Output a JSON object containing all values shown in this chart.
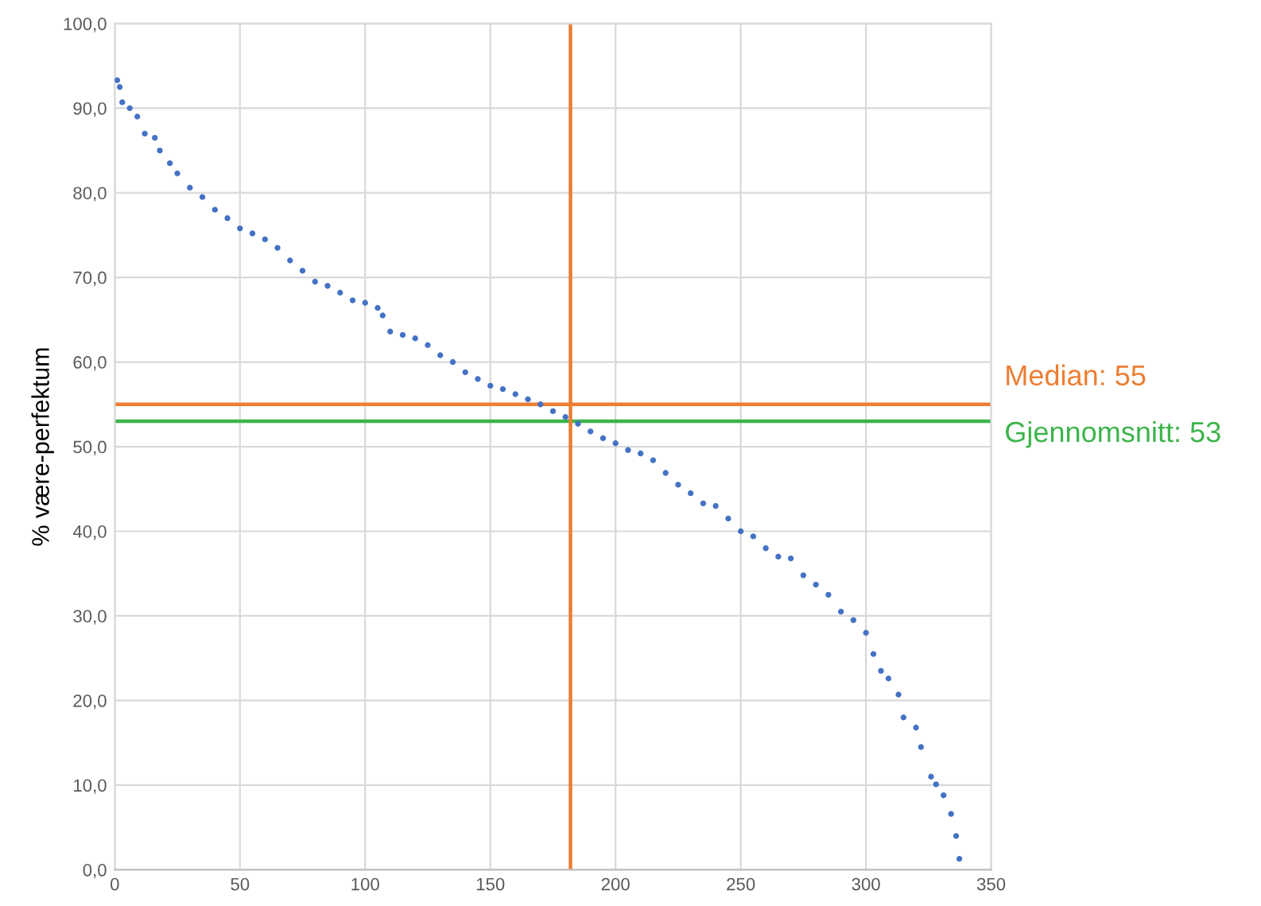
{
  "chart_data": {
    "type": "scatter",
    "ylabel": "% være-perfektum",
    "marker": "circle",
    "grid": true,
    "legend": false,
    "series": [
      {
        "color": "#4472c4",
        "x": [
          1,
          2,
          3,
          6,
          9,
          12,
          16,
          18,
          22,
          25,
          30,
          35,
          40,
          45,
          50,
          55,
          60,
          65,
          70,
          75,
          80,
          85,
          90,
          95,
          100,
          105,
          107,
          110,
          115,
          120,
          125,
          130,
          135,
          140,
          145,
          150,
          155,
          160,
          165,
          170,
          175,
          180,
          185,
          190,
          195,
          200,
          205,
          210,
          215,
          220,
          225,
          230,
          235,
          240,
          245,
          250,
          255,
          260,
          265,
          270,
          275,
          280,
          285,
          290,
          295,
          300,
          303,
          306,
          309,
          313,
          315,
          320,
          322,
          326,
          328,
          331,
          334,
          336,
          337.3
        ],
        "values": [
          93.3,
          92.5,
          90.7,
          90,
          89,
          87,
          86.5,
          85,
          83.5,
          82.3,
          80.6,
          79.5,
          78,
          77,
          75.8,
          75.2,
          74.5,
          73.5,
          72,
          70.8,
          69.5,
          69,
          68.2,
          67.3,
          67,
          66.4,
          65.5,
          63.6,
          63.2,
          62.8,
          62,
          60.8,
          60,
          58.8,
          58,
          57.2,
          56.8,
          56.2,
          55.6,
          55,
          54.2,
          53.5,
          52.7,
          51.8,
          51,
          50.4,
          49.6,
          49.2,
          48.4,
          46.9,
          45.5,
          44.5,
          43.3,
          43,
          41.5,
          40,
          39.4,
          38,
          37,
          36.8,
          34.8,
          33.7,
          32.5,
          30.5,
          29.5,
          28,
          25.5,
          23.5,
          22.6,
          20.7,
          18,
          16.8,
          14.5,
          11,
          10.1,
          8.8,
          6.6,
          4,
          1.3
        ]
      }
    ],
    "xlim": [
      0,
      350
    ],
    "xticks": [
      0,
      50,
      100,
      150,
      200,
      250,
      300,
      350
    ],
    "ylim": [
      0,
      100
    ],
    "yticks": [
      {
        "value": 0,
        "label": "0,0"
      },
      {
        "value": 10,
        "label": "10,0"
      },
      {
        "value": 20,
        "label": "20,0"
      },
      {
        "value": 30,
        "label": "30,0"
      },
      {
        "value": 40,
        "label": "40,0"
      },
      {
        "value": 50,
        "label": "50,0"
      },
      {
        "value": 60,
        "label": "60,0"
      },
      {
        "value": 70,
        "label": "70,0"
      },
      {
        "value": 80,
        "label": "80,0"
      },
      {
        "value": 90,
        "label": "90,0"
      },
      {
        "value": 100,
        "label": "100,0"
      }
    ],
    "ref_lines": [
      {
        "axis": "y",
        "value": 55,
        "label": "Median: 55",
        "color": "#ed7d31"
      },
      {
        "axis": "y",
        "value": 53,
        "label": "Gjennomsnitt: 53",
        "color": "#3cb44b"
      },
      {
        "axis": "x",
        "value": 182,
        "color": "#ed7d31"
      }
    ]
  }
}
